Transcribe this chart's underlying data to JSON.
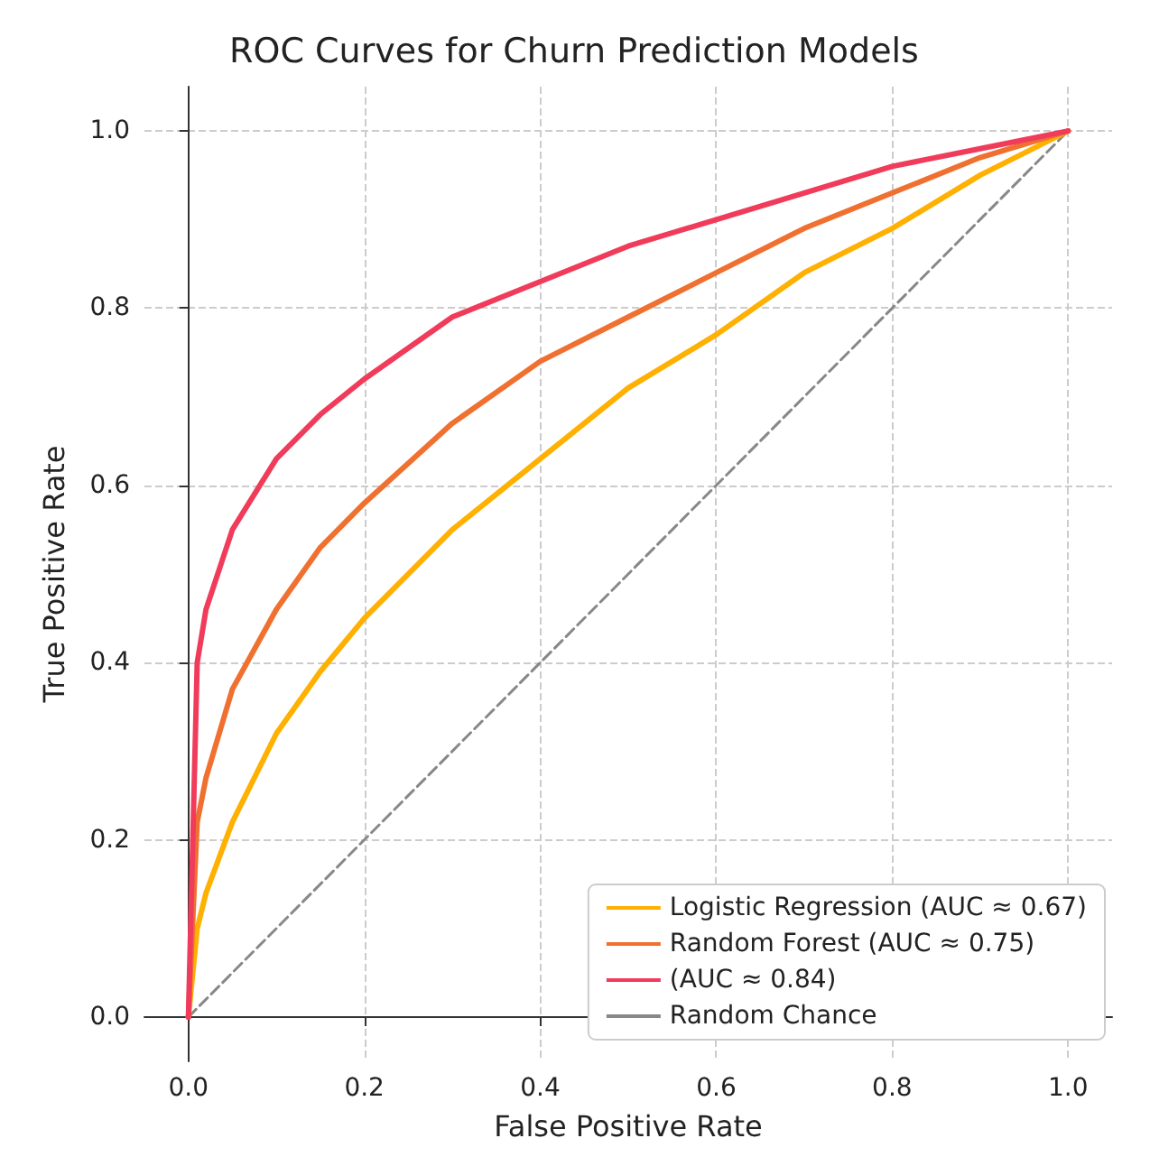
{
  "chart_data": {
    "type": "line",
    "title": "ROC Curves for Churn Prediction Models",
    "xlabel": "False Positive Rate",
    "ylabel": "True Positive Rate",
    "x": [
      0,
      0.01,
      0.02,
      0.05,
      0.1,
      0.15,
      0.2,
      0.3,
      0.4,
      0.5,
      0.6,
      0.7,
      0.8,
      0.9,
      1.0
    ],
    "series": [
      {
        "name": "Logistic Regression (AUC ≈ 0.67)",
        "color": "#ffb000",
        "values": [
          0,
          0.1,
          0.14,
          0.22,
          0.32,
          0.39,
          0.45,
          0.55,
          0.63,
          0.71,
          0.77,
          0.84,
          0.89,
          0.95,
          1
        ]
      },
      {
        "name": "Random Forest (AUC ≈ 0.75)",
        "color": "#f07030",
        "values": [
          0,
          0.22,
          0.27,
          0.37,
          0.46,
          0.53,
          0.58,
          0.67,
          0.74,
          0.79,
          0.84,
          0.89,
          0.93,
          0.97,
          1
        ]
      },
      {
        "name": "(AUC ≈ 0.84)",
        "color": "#f03c5a",
        "values": [
          0,
          0.4,
          0.46,
          0.55,
          0.63,
          0.68,
          0.72,
          0.79,
          0.83,
          0.87,
          0.9,
          0.93,
          0.96,
          0.98,
          1
        ]
      },
      {
        "name": "Random Chance",
        "color": "#888888",
        "x": [
          0,
          1
        ],
        "values": [
          0,
          1
        ],
        "line_style": "dashed"
      }
    ],
    "xlim": [
      -0.05,
      1.05
    ],
    "ylim": [
      -0.05,
      1.05
    ],
    "xticks": [
      {
        "value": 0,
        "label": "0.0"
      },
      {
        "value": 0.2,
        "label": "0.2"
      },
      {
        "value": 0.4,
        "label": "0.4"
      },
      {
        "value": 0.6,
        "label": "0.6"
      },
      {
        "value": 0.8,
        "label": "0.8"
      },
      {
        "value": 1,
        "label": "1.0"
      }
    ],
    "yticks": [
      {
        "value": 0,
        "label": "0.0"
      },
      {
        "value": 0.2,
        "label": "0.2"
      },
      {
        "value": 0.4,
        "label": "0.4"
      },
      {
        "value": 0.6,
        "label": "0.6"
      },
      {
        "value": 0.8,
        "label": "0.8"
      },
      {
        "value": 1,
        "label": "1.0"
      }
    ],
    "grid": true,
    "legend": "bottom right",
    "line_style": "solid",
    "marker": "none"
  }
}
